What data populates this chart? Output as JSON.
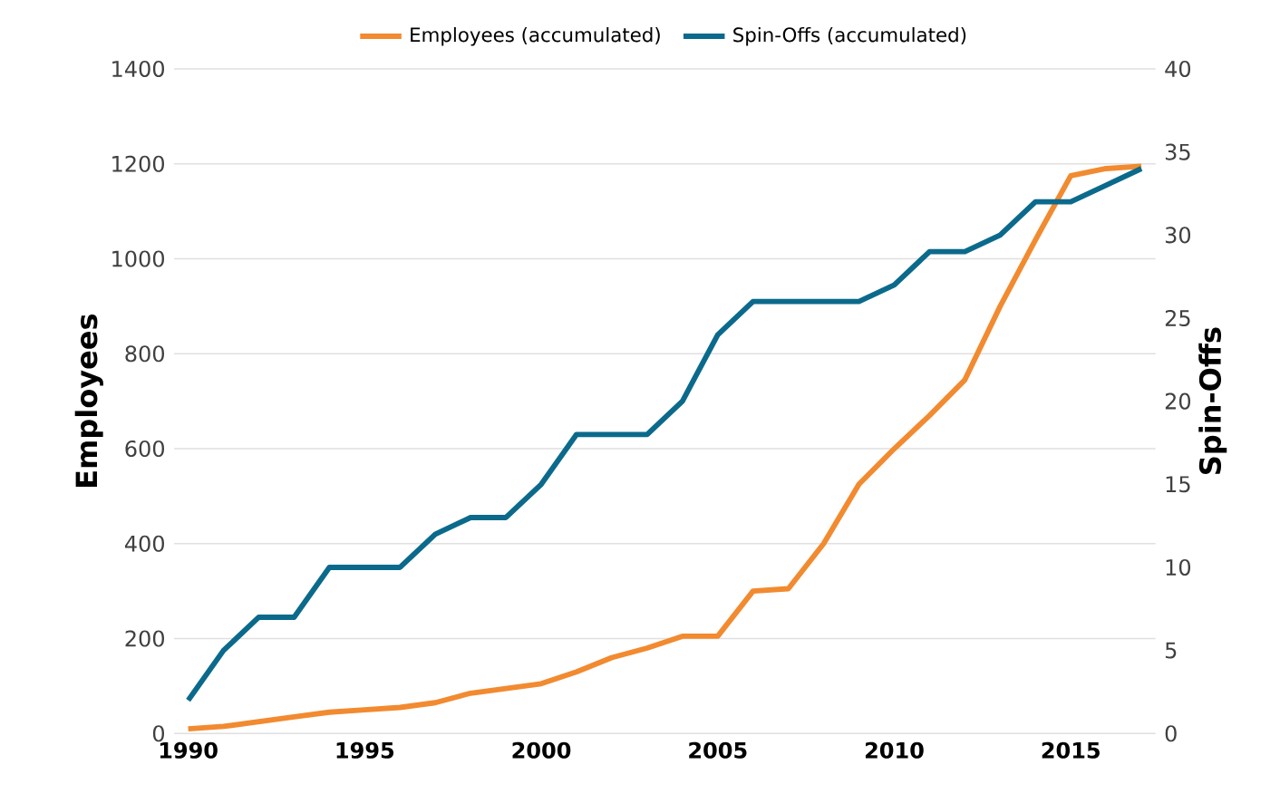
{
  "chart_data": {
    "type": "line",
    "x": [
      1990,
      1991,
      1992,
      1993,
      1994,
      1995,
      1996,
      1997,
      1998,
      1999,
      2000,
      2001,
      2002,
      2003,
      2004,
      2005,
      2006,
      2007,
      2008,
      2009,
      2010,
      2011,
      2012,
      2013,
      2014,
      2015,
      2016,
      2017
    ],
    "series": [
      {
        "name": "Employees (accumulated)",
        "color": "#f28a30",
        "values": [
          10,
          15,
          25,
          35,
          45,
          50,
          55,
          65,
          85,
          95,
          105,
          130,
          160,
          180,
          205,
          205,
          300,
          305,
          400,
          525,
          600,
          670,
          745,
          900,
          1040,
          1175,
          1190,
          1195
        ]
      },
      {
        "name": "Spin-Offs (accumulated)",
        "color": "#0b6a8c",
        "axis": "y2",
        "values": [
          2,
          5,
          7,
          7,
          10,
          10,
          10,
          12,
          13,
          13,
          15,
          18,
          18,
          18,
          20,
          24,
          26,
          26,
          26,
          26,
          27,
          29,
          29,
          30,
          32,
          32,
          33,
          34
        ]
      }
    ],
    "xlim": [
      1989.6,
      2017.4
    ],
    "xticks": [
      1990,
      1995,
      2000,
      2005,
      2010,
      2015
    ],
    "ylim": [
      0,
      1400
    ],
    "yticks": [
      0,
      200,
      400,
      600,
      800,
      1000,
      1200,
      1400
    ],
    "y2lim": [
      0,
      40
    ],
    "y2ticks": [
      0,
      5,
      10,
      15,
      20,
      25,
      30,
      35,
      40
    ],
    "ylabel": "Employees",
    "y2label": "Spin-Offs",
    "grid": "y",
    "legend": "top",
    "marker": "none",
    "line_style": "solid"
  }
}
